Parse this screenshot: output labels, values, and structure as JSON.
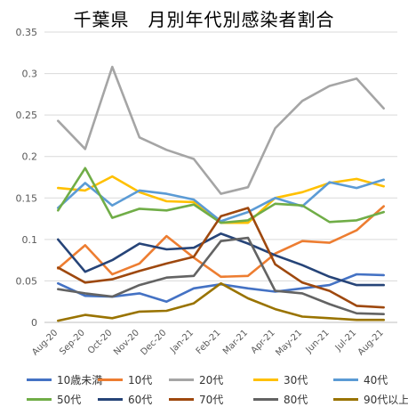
{
  "chart_data": {
    "type": "line",
    "title": "千葉県　月別年代別感染者割合",
    "x": [
      "Aug-20",
      "Sep-20",
      "Oct-20",
      "Nov-20",
      "Dec-20",
      "Jan-21",
      "Feb-21",
      "Mar-21",
      "Apr-21",
      "May-21",
      "Jun-21",
      "Jul-21",
      "Aug-21"
    ],
    "yticks": [
      "0",
      "0.05",
      "0.1",
      "0.15",
      "0.2",
      "0.25",
      "0.3",
      "0.35"
    ],
    "ylim": [
      0,
      0.35
    ],
    "grid": true,
    "legend_position": "bottom",
    "series": [
      {
        "name": "10歳未満",
        "color": "#4472c4",
        "values": [
          0.047,
          0.032,
          0.031,
          0.035,
          0.025,
          0.041,
          0.046,
          0.041,
          0.037,
          0.041,
          0.045,
          0.058,
          0.057
        ]
      },
      {
        "name": "10代",
        "color": "#ed7d31",
        "values": [
          0.065,
          0.093,
          0.058,
          0.071,
          0.104,
          0.078,
          0.055,
          0.056,
          0.083,
          0.098,
          0.096,
          0.111,
          0.14
        ]
      },
      {
        "name": "20代",
        "color": "#a5a5a5",
        "values": [
          0.243,
          0.209,
          0.308,
          0.223,
          0.208,
          0.197,
          0.155,
          0.163,
          0.234,
          0.267,
          0.285,
          0.294,
          0.258
        ]
      },
      {
        "name": "30代",
        "color": "#ffc000",
        "values": [
          0.162,
          0.159,
          0.176,
          0.157,
          0.146,
          0.145,
          0.12,
          0.12,
          0.15,
          0.157,
          0.168,
          0.173,
          0.164
        ]
      },
      {
        "name": "40代",
        "color": "#5b9bd5",
        "values": [
          0.138,
          0.168,
          0.141,
          0.159,
          0.155,
          0.148,
          0.122,
          0.133,
          0.15,
          0.14,
          0.169,
          0.162,
          0.172
        ]
      },
      {
        "name": "50代",
        "color": "#70ad47",
        "values": [
          0.135,
          0.186,
          0.126,
          0.137,
          0.135,
          0.142,
          0.12,
          0.123,
          0.143,
          0.141,
          0.121,
          0.123,
          0.133
        ]
      },
      {
        "name": "60代",
        "color": "#264478",
        "values": [
          0.1,
          0.061,
          0.075,
          0.095,
          0.088,
          0.09,
          0.107,
          0.095,
          0.081,
          0.069,
          0.055,
          0.045,
          0.045
        ]
      },
      {
        "name": "70代",
        "color": "#9e480e",
        "values": [
          0.066,
          0.048,
          0.052,
          0.062,
          0.071,
          0.079,
          0.128,
          0.138,
          0.07,
          0.048,
          0.038,
          0.02,
          0.018
        ]
      },
      {
        "name": "80代",
        "color": "#636363",
        "values": [
          0.04,
          0.035,
          0.031,
          0.045,
          0.054,
          0.056,
          0.098,
          0.102,
          0.038,
          0.035,
          0.022,
          0.011,
          0.01
        ]
      },
      {
        "name": "90代以上",
        "color": "#997300",
        "values": [
          0.002,
          0.009,
          0.005,
          0.013,
          0.014,
          0.023,
          0.047,
          0.029,
          0.016,
          0.007,
          0.005,
          0.003,
          0.003
        ]
      }
    ]
  }
}
